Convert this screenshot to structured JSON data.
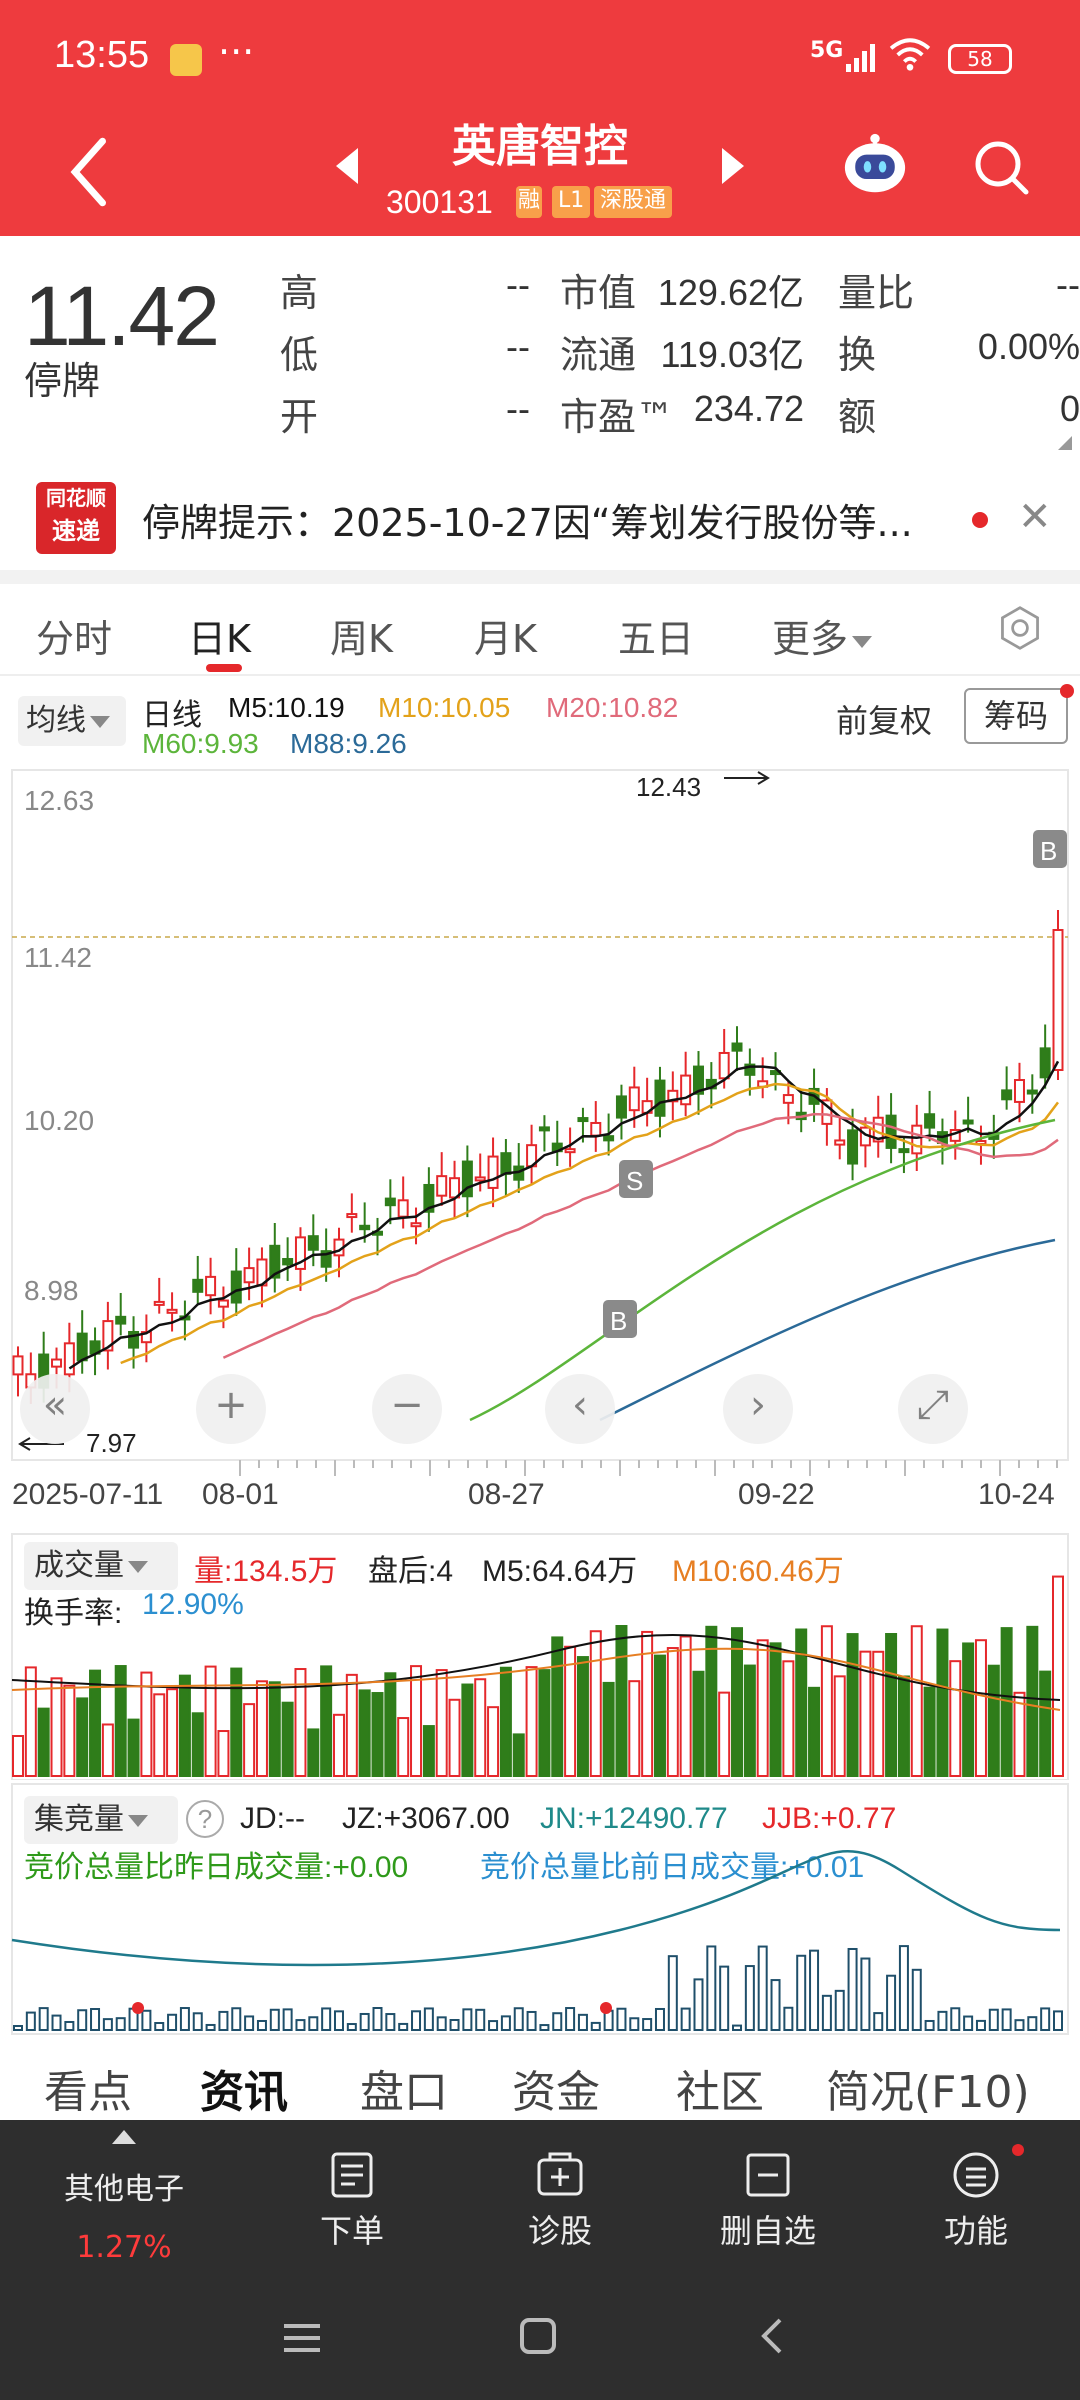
{
  "status_bar": {
    "time": "13:55",
    "dots": "···",
    "network": "5G",
    "battery": "58"
  },
  "header": {
    "name": "英唐智控",
    "code": "300131",
    "tags": [
      "融",
      "L1",
      "深股通"
    ],
    "icons": {
      "back": "back-chevron-icon",
      "prev": "prev-triangle-icon",
      "next": "next-triangle-icon",
      "assistant": "robot-icon",
      "search": "search-icon"
    }
  },
  "quote": {
    "price": "11.42",
    "status": "停牌",
    "rows": [
      {
        "label": "高",
        "value": "--",
        "label2": "市值",
        "value2": "129.62亿",
        "label3": "量比",
        "value3": "--"
      },
      {
        "label": "低",
        "value": "--",
        "label2": "流通",
        "value2": "119.03亿",
        "label3": "换",
        "value3": "0.00%"
      },
      {
        "label": "开",
        "value": "--",
        "label2": "市盈™",
        "value2": "234.72",
        "label3": "额",
        "value3": "0"
      }
    ]
  },
  "notice": {
    "logo_top": "同花顺",
    "logo_bottom": "速递",
    "text": "停牌提示：2025-10-27因“筹划发行股份等...",
    "close": "✕"
  },
  "tabs": [
    {
      "label": "分时"
    },
    {
      "label": "日K"
    },
    {
      "label": "周K"
    },
    {
      "label": "月K"
    },
    {
      "label": "五日"
    },
    {
      "label": "更多"
    }
  ],
  "kline": {
    "selector": "均线",
    "period_label": "日线",
    "ma": [
      {
        "name": "M5:10.19",
        "color": "#111111"
      },
      {
        "name": "M10:10.05",
        "color": "#e3a21a"
      },
      {
        "name": "M20:10.82",
        "color": "#e06a7a"
      },
      {
        "name": "M60:9.93",
        "color": "#5cb53b"
      },
      {
        "name": "M88:9.26",
        "color": "#2b6a98"
      }
    ],
    "adjust": "前复权",
    "chips": "筹码",
    "y_labels": [
      "12.63",
      "11.42",
      "10.20",
      "8.98"
    ],
    "high_mark": "12.43",
    "low_mark": "7.97",
    "markers": [
      "S",
      "B",
      "B"
    ],
    "dates": [
      "2025-07-11",
      "08-01",
      "08-27",
      "09-22",
      "10-24"
    ],
    "controls": [
      "«",
      "+",
      "−",
      "‹",
      "›",
      "⤢"
    ]
  },
  "volume": {
    "selector": "成交量",
    "vol": "量:134.5万",
    "after": "盘后:4",
    "m5": "M5:64.64万",
    "m10": "M10:60.46万",
    "turnover_label": "换手率:",
    "turnover_value": "12.90%"
  },
  "auction": {
    "selector": "集竞量",
    "help": "?",
    "jd": "JD:-- ",
    "jz": "JZ:+3067.00",
    "jn": "JN:+12490.77",
    "jjb": "JJB:+0.77",
    "ratio1": "竞价总量比昨日成交量:+0.00",
    "ratio2": "竞价总量比前日成交量:+0.01"
  },
  "info_tabs": [
    {
      "label": "看点"
    },
    {
      "label": "资讯"
    },
    {
      "label": "盘口"
    },
    {
      "label": "资金"
    },
    {
      "label": "社区"
    },
    {
      "label": "简况(F10)"
    }
  ],
  "dock": {
    "sector": "其他电子",
    "sector_change": "1.27%",
    "items": [
      {
        "label": "下单"
      },
      {
        "label": "诊股"
      },
      {
        "label": "删自选"
      },
      {
        "label": "功能"
      }
    ]
  },
  "colors": {
    "up": "#e5282b",
    "down": "#2f7d1a",
    "brand": "#ee3b3e"
  }
}
